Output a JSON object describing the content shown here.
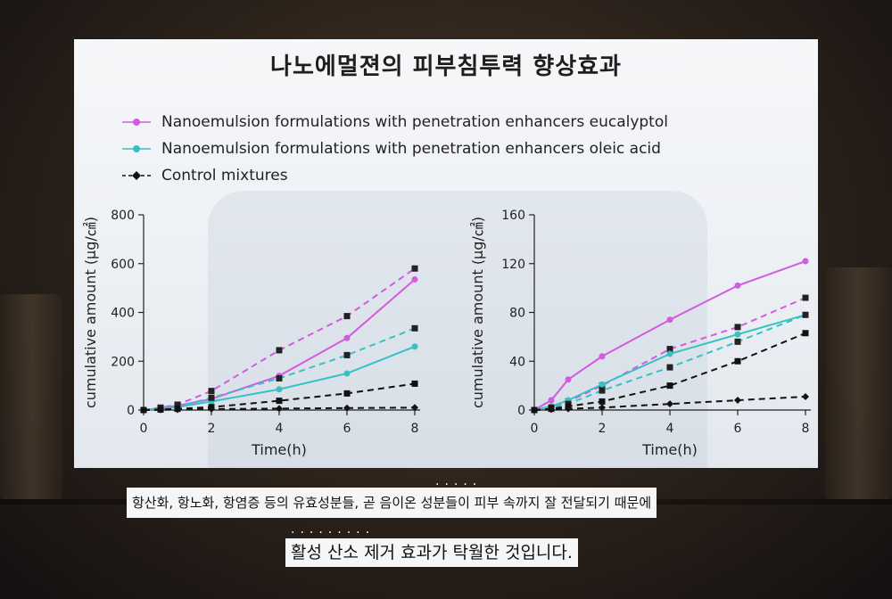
{
  "title": "나노에멀젼의 피부침투력 향상효과",
  "legend": [
    {
      "label": "Nanoemulsion formulations with penetration enhancers eucalyptol",
      "color": "#d25be0",
      "marker": "circle"
    },
    {
      "label": "Nanoemulsion formulations with penetration enhancers oleic acid",
      "color": "#38c1c4",
      "marker": "circle"
    },
    {
      "label": "Control mixtures",
      "color": "#111111",
      "marker": "diamond"
    }
  ],
  "caption": {
    "line1": "항산화, 항노화, 항염증 등의 유효성분들, 곧 음이온 성분들이 피부 속까지 잘 전달되기 때문에",
    "line2": "활성 산소 제거 효과가 탁월한 것입니다."
  },
  "chart_data": [
    {
      "type": "line",
      "xlabel": "Time(h)",
      "ylabel": "cumulative amount (μg/㎠)",
      "xlim": [
        0,
        8
      ],
      "ylim": [
        0,
        800
      ],
      "xticks": [
        0,
        2,
        4,
        6,
        8
      ],
      "yticks": [
        0,
        200,
        400,
        600,
        800
      ],
      "series": [
        {
          "color": "#d25be0",
          "dash": false,
          "marker": "circle",
          "x": [
            0,
            0.5,
            1,
            2,
            4,
            6,
            8
          ],
          "values": [
            0,
            8,
            18,
            45,
            140,
            295,
            535
          ]
        },
        {
          "color": "#d25be0",
          "dash": true,
          "marker": "square",
          "x": [
            0,
            0.5,
            1,
            2,
            4,
            6,
            8
          ],
          "values": [
            0,
            10,
            22,
            78,
            245,
            385,
            580
          ]
        },
        {
          "color": "#38c1c4",
          "dash": false,
          "marker": "circle",
          "x": [
            0,
            0.5,
            1,
            2,
            4,
            6,
            8
          ],
          "values": [
            0,
            5,
            12,
            35,
            85,
            150,
            260
          ]
        },
        {
          "color": "#38c1c4",
          "dash": true,
          "marker": "square",
          "x": [
            0,
            0.5,
            1,
            2,
            4,
            6,
            8
          ],
          "values": [
            0,
            6,
            14,
            50,
            130,
            225,
            335
          ]
        },
        {
          "color": "#111111",
          "dash": true,
          "marker": "square",
          "x": [
            0,
            0.5,
            1,
            2,
            4,
            6,
            8
          ],
          "values": [
            0,
            2,
            5,
            12,
            38,
            68,
            108
          ]
        },
        {
          "color": "#111111",
          "dash": true,
          "marker": "diamond",
          "x": [
            0,
            0.5,
            1,
            2,
            4,
            6,
            8
          ],
          "values": [
            0,
            1,
            2,
            4,
            6,
            8,
            10
          ]
        }
      ]
    },
    {
      "type": "line",
      "xlabel": "Time(h)",
      "ylabel": "cumulative amount (μg/㎠)",
      "xlim": [
        0,
        8
      ],
      "ylim": [
        0,
        160
      ],
      "xticks": [
        0,
        2,
        4,
        6,
        8
      ],
      "yticks": [
        0,
        40,
        80,
        120,
        160
      ],
      "series": [
        {
          "color": "#d25be0",
          "dash": false,
          "marker": "circle",
          "x": [
            0,
            0.5,
            1,
            2,
            4,
            6,
            8
          ],
          "values": [
            0,
            8,
            25,
            44,
            74,
            102,
            122
          ]
        },
        {
          "color": "#d25be0",
          "dash": true,
          "marker": "square",
          "x": [
            0,
            0.5,
            1,
            2,
            4,
            6,
            8
          ],
          "values": [
            0,
            2,
            7,
            20,
            50,
            68,
            92
          ]
        },
        {
          "color": "#38c1c4",
          "dash": false,
          "marker": "circle",
          "x": [
            0,
            0.5,
            1,
            2,
            4,
            6,
            8
          ],
          "values": [
            0,
            3,
            8,
            21,
            46,
            62,
            78
          ]
        },
        {
          "color": "#38c1c4",
          "dash": true,
          "marker": "square",
          "x": [
            0,
            0.5,
            1,
            2,
            4,
            6,
            8
          ],
          "values": [
            0,
            2,
            5,
            16,
            35,
            56,
            78
          ]
        },
        {
          "color": "#111111",
          "dash": true,
          "marker": "square",
          "x": [
            0,
            0.5,
            1,
            2,
            4,
            6,
            8
          ],
          "values": [
            0,
            1,
            3,
            7,
            20,
            40,
            63
          ]
        },
        {
          "color": "#111111",
          "dash": true,
          "marker": "diamond",
          "x": [
            0,
            0.5,
            1,
            2,
            4,
            6,
            8
          ],
          "values": [
            0,
            0.5,
            1,
            2,
            5,
            8,
            11
          ]
        }
      ]
    }
  ]
}
